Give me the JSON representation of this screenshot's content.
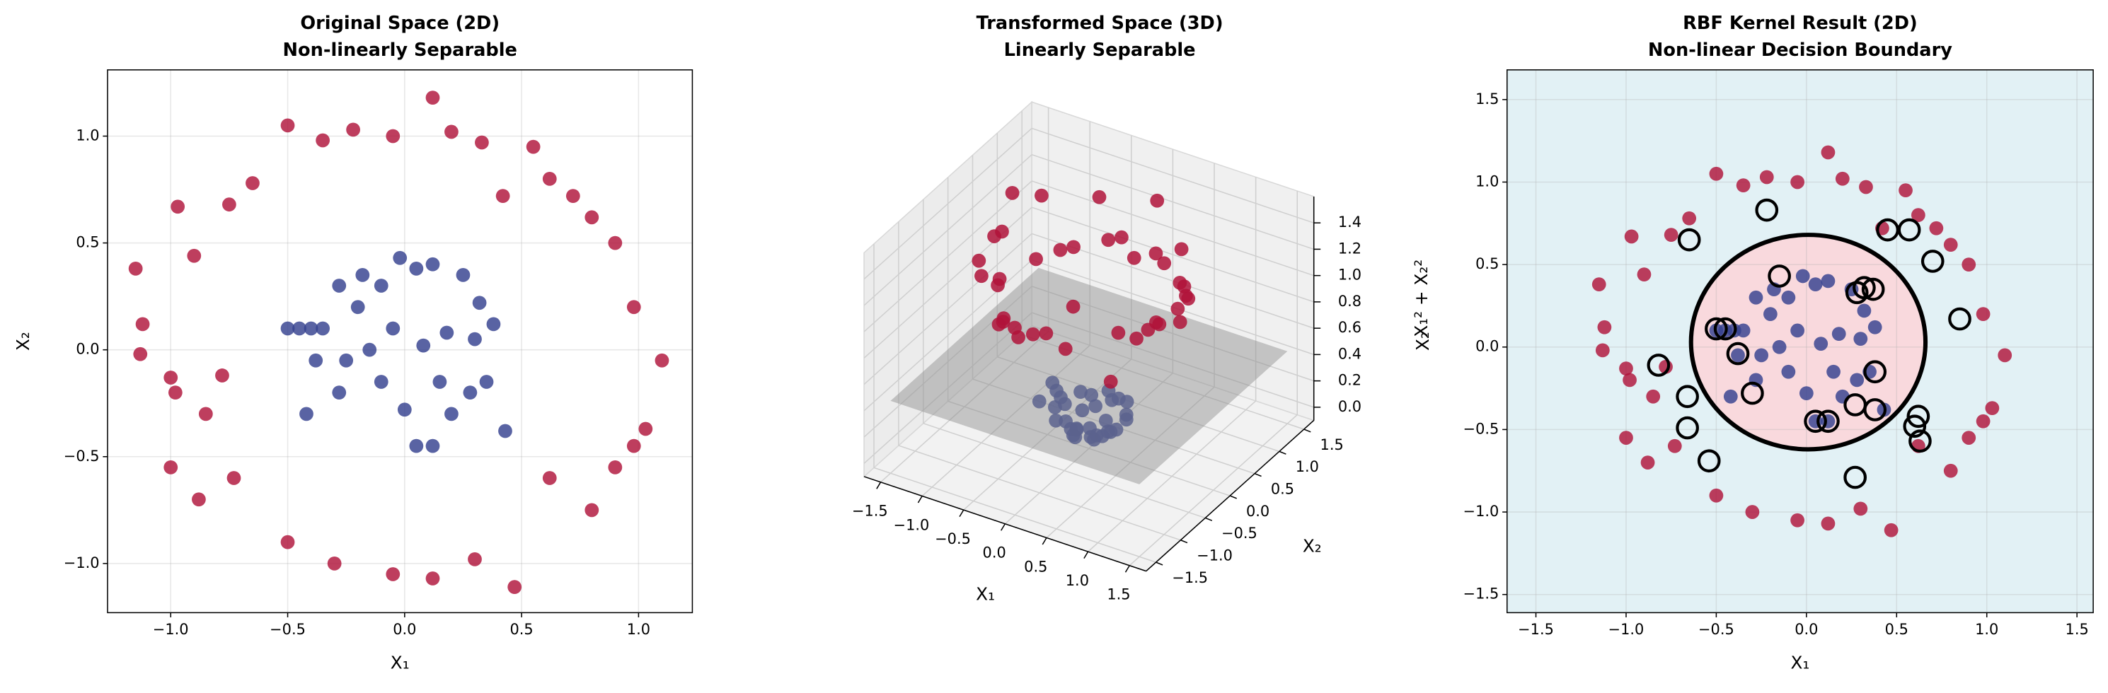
{
  "chart_data": [
    {
      "type": "scatter",
      "title": "Original Space (2D)",
      "subtitle": "Non-linearly Separable",
      "x_label": "X₁",
      "y_label": "X₂",
      "xlim": [
        -1.27,
        1.23
      ],
      "ylim": [
        -1.23,
        1.31
      ],
      "xticks": [
        {
          "value": -1,
          "label": "−1.0"
        },
        {
          "value": -0.5,
          "label": "−0.5"
        },
        {
          "value": 0,
          "label": "0.0"
        },
        0.5,
        {
          "value": 1,
          "label": "1.0"
        }
      ],
      "yticks": [
        {
          "value": -1,
          "label": "−1.0"
        },
        {
          "value": -0.5,
          "label": "−0.5"
        },
        {
          "value": 0,
          "label": "0.0"
        },
        0.5,
        {
          "value": 1,
          "label": "1.0"
        }
      ],
      "grid": true,
      "series": [
        {
          "color": "#b0133a",
          "x": [
            -1.15,
            -1.12,
            -1.13,
            -1.0,
            -0.98,
            -0.97,
            -0.9,
            -0.75,
            -0.65,
            -0.5,
            -0.35,
            -0.22,
            -0.05,
            0.12,
            0.2,
            0.33,
            0.55,
            0.62,
            0.72,
            0.8,
            0.9,
            0.98,
            1.1,
            1.03,
            0.9,
            0.8,
            0.62,
            0.47,
            0.3,
            0.12,
            -0.05,
            -0.3,
            -0.5,
            -0.73,
            -0.88,
            -1.0,
            -0.85,
            0.98,
            0.42,
            -0.78
          ],
          "y": [
            0.38,
            0.12,
            -0.02,
            -0.13,
            -0.2,
            0.67,
            0.44,
            0.68,
            0.78,
            1.05,
            0.98,
            1.03,
            1.0,
            1.18,
            1.02,
            0.97,
            0.95,
            0.8,
            0.72,
            0.62,
            0.5,
            0.2,
            -0.05,
            -0.37,
            -0.55,
            -0.75,
            -0.6,
            -1.11,
            -0.98,
            -1.07,
            -1.05,
            -1.0,
            -0.9,
            -0.6,
            -0.7,
            -0.55,
            -0.3,
            -0.45,
            0.72,
            -0.12
          ]
        },
        {
          "color": "#34418f",
          "x": [
            -0.5,
            -0.45,
            -0.4,
            -0.35,
            -0.28,
            -0.18,
            -0.1,
            -0.02,
            0.05,
            0.12,
            0.25,
            0.32,
            0.38,
            0.3,
            0.18,
            0.08,
            -0.05,
            -0.15,
            -0.25,
            -0.38,
            -0.42,
            -0.28,
            -0.1,
            0.0,
            0.05,
            0.12,
            0.2,
            0.28,
            0.35,
            0.43,
            0.15,
            -0.2
          ],
          "y": [
            0.1,
            0.1,
            0.1,
            0.1,
            0.3,
            0.35,
            0.3,
            0.43,
            0.38,
            0.4,
            0.35,
            0.22,
            0.12,
            0.05,
            0.08,
            0.02,
            0.1,
            0.0,
            -0.05,
            -0.05,
            -0.3,
            -0.2,
            -0.15,
            -0.28,
            -0.45,
            -0.45,
            -0.3,
            -0.2,
            -0.15,
            -0.38,
            -0.15,
            0.2
          ]
        }
      ]
    },
    {
      "type": "scatter3d",
      "title": "Transformed Space (3D)",
      "subtitle": "Linearly Separable",
      "x_label": "X₁",
      "y_label": "X₂",
      "z_label": "X₁² + X₂²",
      "xlim": [
        -1.7,
        1.7
      ],
      "ylim": [
        -1.7,
        1.7
      ],
      "zlim": [
        -0.1,
        1.6
      ],
      "xticks": [
        {
          "value": -1.5,
          "label": "−1.5"
        },
        {
          "value": -1,
          "label": "−1.0"
        },
        {
          "value": -0.5,
          "label": "−0.5"
        },
        {
          "value": 0,
          "label": "0.0"
        },
        0.5,
        {
          "value": 1,
          "label": "1.0"
        },
        1.5
      ],
      "yticks": [
        {
          "value": -1.5,
          "label": "−1.5"
        },
        {
          "value": -1,
          "label": "−1.0"
        },
        {
          "value": -0.5,
          "label": "−0.5"
        },
        {
          "value": 0,
          "label": "0.0"
        },
        0.5,
        {
          "value": 1,
          "label": "1.0"
        },
        1.5
      ],
      "zticks": [
        {
          "value": 0,
          "label": "0.0"
        },
        0.2,
        0.4,
        0.6,
        0.8,
        {
          "value": 1,
          "label": "1.0"
        },
        1.2,
        1.4
      ],
      "plane": {
        "z": 0.45,
        "color": "#8c8c8c"
      },
      "series": [
        {
          "color": "#b0133a",
          "x": [
            -1.15,
            -1.12,
            -1.13,
            -1.0,
            -0.98,
            -0.97,
            -0.9,
            -0.75,
            -0.65,
            -0.5,
            -0.35,
            -0.22,
            -0.05,
            0.12,
            0.2,
            0.33,
            0.55,
            0.62,
            0.72,
            0.8,
            0.9,
            0.98,
            1.1,
            1.03,
            0.9,
            0.8,
            0.62,
            0.47,
            0.3,
            0.12,
            -0.05,
            -0.3,
            -0.5,
            -0.73,
            -0.88,
            -1.0,
            -0.85,
            0.98,
            0.42,
            -0.78
          ],
          "y": [
            0.38,
            0.12,
            -0.02,
            -0.13,
            -0.2,
            0.67,
            0.44,
            0.68,
            0.78,
            1.05,
            0.98,
            1.03,
            1.0,
            1.18,
            1.02,
            0.97,
            0.95,
            0.8,
            0.72,
            0.62,
            0.5,
            0.2,
            -0.05,
            -0.37,
            -0.55,
            -0.75,
            -0.6,
            -1.11,
            -0.98,
            -1.07,
            -1.05,
            -1.0,
            -0.9,
            -0.6,
            -0.7,
            -0.55,
            -0.3,
            -0.45,
            0.72,
            -0.12
          ],
          "z": [
            1.47,
            1.27,
            1.28,
            1.02,
            1.0,
            1.39,
            1.0,
            1.02,
            1.03,
            1.35,
            1.08,
            1.11,
            1.0,
            1.41,
            1.08,
            1.05,
            1.21,
            1.02,
            1.04,
            1.02,
            1.06,
            1.0,
            1.21,
            1.2,
            1.11,
            1.2,
            0.74,
            1.45,
            1.05,
            1.16,
            1.11,
            1.09,
            1.06,
            0.89,
            1.26,
            1.3,
            0.81,
            1.16,
            0.69,
            0.62
          ]
        },
        {
          "color": "#34418f",
          "x": [
            -0.5,
            -0.45,
            -0.4,
            -0.35,
            -0.28,
            -0.18,
            -0.1,
            -0.02,
            0.05,
            0.12,
            0.25,
            0.32,
            0.38,
            0.3,
            0.18,
            0.08,
            -0.05,
            -0.15,
            -0.25,
            -0.38,
            -0.42,
            -0.28,
            -0.1,
            0.0,
            0.05,
            0.12,
            0.2,
            0.28,
            0.35,
            0.43,
            0.15,
            -0.2
          ],
          "y": [
            0.1,
            0.1,
            0.1,
            0.1,
            0.3,
            0.35,
            0.3,
            0.43,
            0.38,
            0.4,
            0.35,
            0.22,
            0.12,
            0.05,
            0.08,
            0.02,
            0.1,
            0.0,
            -0.05,
            -0.05,
            -0.3,
            -0.2,
            -0.15,
            -0.28,
            -0.45,
            -0.45,
            -0.3,
            -0.2,
            -0.15,
            -0.38,
            -0.15,
            0.2
          ],
          "z": [
            0.26,
            0.21,
            0.17,
            0.13,
            0.17,
            0.15,
            0.1,
            0.19,
            0.15,
            0.17,
            0.19,
            0.15,
            0.16,
            0.09,
            0.04,
            0.01,
            0.01,
            0.02,
            0.07,
            0.15,
            0.27,
            0.12,
            0.03,
            0.08,
            0.21,
            0.22,
            0.13,
            0.12,
            0.15,
            0.33,
            0.05,
            0.08
          ]
        }
      ]
    },
    {
      "type": "scatter",
      "title": "RBF Kernel Result (2D)",
      "subtitle": "Non-linear Decision Boundary",
      "x_label": "X₁",
      "y_label": "X₂",
      "xlim": [
        -1.66,
        1.59
      ],
      "ylim": [
        -1.61,
        1.68
      ],
      "xticks": [
        {
          "value": -1.5,
          "label": "−1.5"
        },
        {
          "value": -1,
          "label": "−1.0"
        },
        {
          "value": -0.5,
          "label": "−0.5"
        },
        {
          "value": 0,
          "label": "0.0"
        },
        0.5,
        {
          "value": 1,
          "label": "1.0"
        },
        1.5
      ],
      "yticks": [
        {
          "value": -1.5,
          "label": "−1.5"
        },
        {
          "value": -1,
          "label": "−1.0"
        },
        {
          "value": -0.5,
          "label": "−0.5"
        },
        {
          "value": 0,
          "label": "0.0"
        },
        0.5,
        {
          "value": 1,
          "label": "1.0"
        },
        1.5
      ],
      "grid": true,
      "background_color": "#e2f1f5",
      "region_color": "#f9d9dd",
      "boundary": {
        "center": [
          0.01,
          0.03
        ],
        "radius": 0.65,
        "color": "#000000"
      },
      "series": [
        {
          "color": "#b0133a",
          "x": [
            -1.15,
            -1.12,
            -1.13,
            -1.0,
            -0.98,
            -0.97,
            -0.9,
            -0.75,
            -0.65,
            -0.5,
            -0.35,
            -0.22,
            -0.05,
            0.12,
            0.2,
            0.33,
            0.55,
            0.62,
            0.72,
            0.8,
            0.9,
            0.98,
            1.1,
            1.03,
            0.9,
            0.8,
            0.62,
            0.47,
            0.3,
            0.12,
            -0.05,
            -0.3,
            -0.5,
            -0.73,
            -0.88,
            -1.0,
            -0.85,
            0.98,
            0.42,
            -0.78
          ],
          "y": [
            0.38,
            0.12,
            -0.02,
            -0.13,
            -0.2,
            0.67,
            0.44,
            0.68,
            0.78,
            1.05,
            0.98,
            1.03,
            1.0,
            1.18,
            1.02,
            0.97,
            0.95,
            0.8,
            0.72,
            0.62,
            0.5,
            0.2,
            -0.05,
            -0.37,
            -0.55,
            -0.75,
            -0.6,
            -1.11,
            -0.98,
            -1.07,
            -1.05,
            -1.0,
            -0.9,
            -0.6,
            -0.7,
            -0.55,
            -0.3,
            -0.45,
            0.72,
            -0.12
          ]
        },
        {
          "color": "#34418f",
          "x": [
            -0.5,
            -0.45,
            -0.4,
            -0.35,
            -0.28,
            -0.18,
            -0.1,
            -0.02,
            0.05,
            0.12,
            0.25,
            0.32,
            0.38,
            0.3,
            0.18,
            0.08,
            -0.05,
            -0.15,
            -0.25,
            -0.38,
            -0.42,
            -0.28,
            -0.1,
            0.0,
            0.05,
            0.12,
            0.2,
            0.28,
            0.35,
            0.43,
            0.15,
            -0.2
          ],
          "y": [
            0.1,
            0.1,
            0.1,
            0.1,
            0.3,
            0.35,
            0.3,
            0.43,
            0.38,
            0.4,
            0.35,
            0.22,
            0.12,
            0.05,
            0.08,
            0.02,
            0.1,
            0.0,
            -0.05,
            -0.05,
            -0.3,
            -0.2,
            -0.15,
            -0.28,
            -0.45,
            -0.45,
            -0.3,
            -0.2,
            -0.15,
            -0.38,
            -0.15,
            0.2
          ]
        }
      ],
      "support_vectors": {
        "color": "#000000",
        "x": [
          -0.65,
          -0.22,
          0.45,
          0.57,
          0.7,
          0.85,
          -0.82,
          -0.66,
          -0.66,
          -0.54,
          0.27,
          0.62,
          0.6,
          0.63,
          -0.15,
          -0.5,
          -0.45,
          -0.38,
          -0.3,
          0.28,
          0.32,
          0.37,
          0.38,
          0.27,
          0.38,
          0.05,
          0.12
        ],
        "y": [
          0.65,
          0.83,
          0.71,
          0.71,
          0.52,
          0.17,
          -0.11,
          -0.3,
          -0.49,
          -0.69,
          -0.79,
          -0.42,
          -0.48,
          -0.57,
          0.43,
          0.11,
          0.11,
          -0.04,
          -0.28,
          0.33,
          0.36,
          0.35,
          -0.15,
          -0.35,
          -0.38,
          -0.45,
          -0.45
        ]
      }
    }
  ]
}
